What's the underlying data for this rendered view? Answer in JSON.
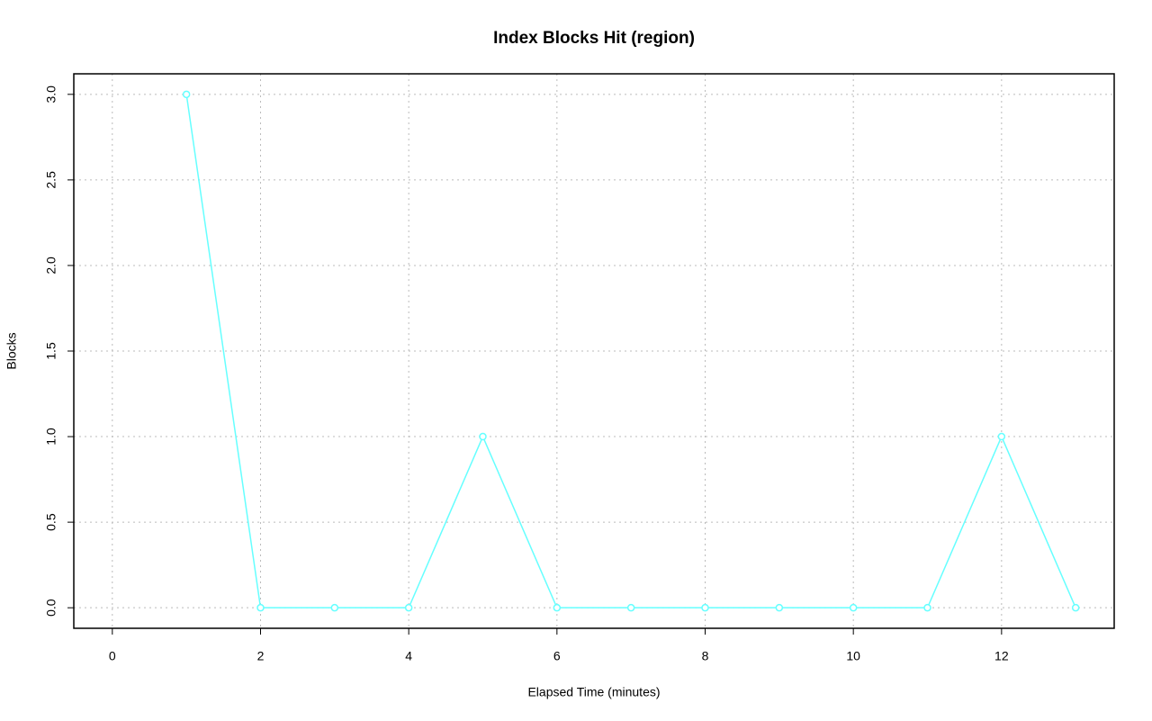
{
  "chart_data": {
    "type": "line",
    "title": "Index Blocks Hit (region)",
    "xlabel": "Elapsed Time (minutes)",
    "ylabel": "Blocks",
    "x": [
      1,
      2,
      3,
      4,
      5,
      6,
      7,
      8,
      9,
      10,
      11,
      12,
      13
    ],
    "series": [
      {
        "name": "Blocks",
        "color": "#66ffff",
        "values": [
          3,
          0,
          0,
          0,
          1,
          0,
          0,
          0,
          0,
          0,
          0,
          1,
          0
        ]
      }
    ],
    "xlim": [
      -0.52,
      13.52
    ],
    "xticks": [
      0,
      2,
      4,
      6,
      8,
      10,
      12
    ],
    "ylim": [
      -0.12,
      3.12
    ],
    "yticks": [
      {
        "value": 0,
        "label": "0.0"
      },
      {
        "value": 0.5,
        "label": "0.5"
      },
      {
        "value": 1,
        "label": "1.0"
      },
      {
        "value": 1.5,
        "label": "1.5"
      },
      {
        "value": 2,
        "label": "2.0"
      },
      {
        "value": 2.5,
        "label": "2.5"
      },
      {
        "value": 3,
        "label": "3.0"
      }
    ],
    "grid": true
  }
}
